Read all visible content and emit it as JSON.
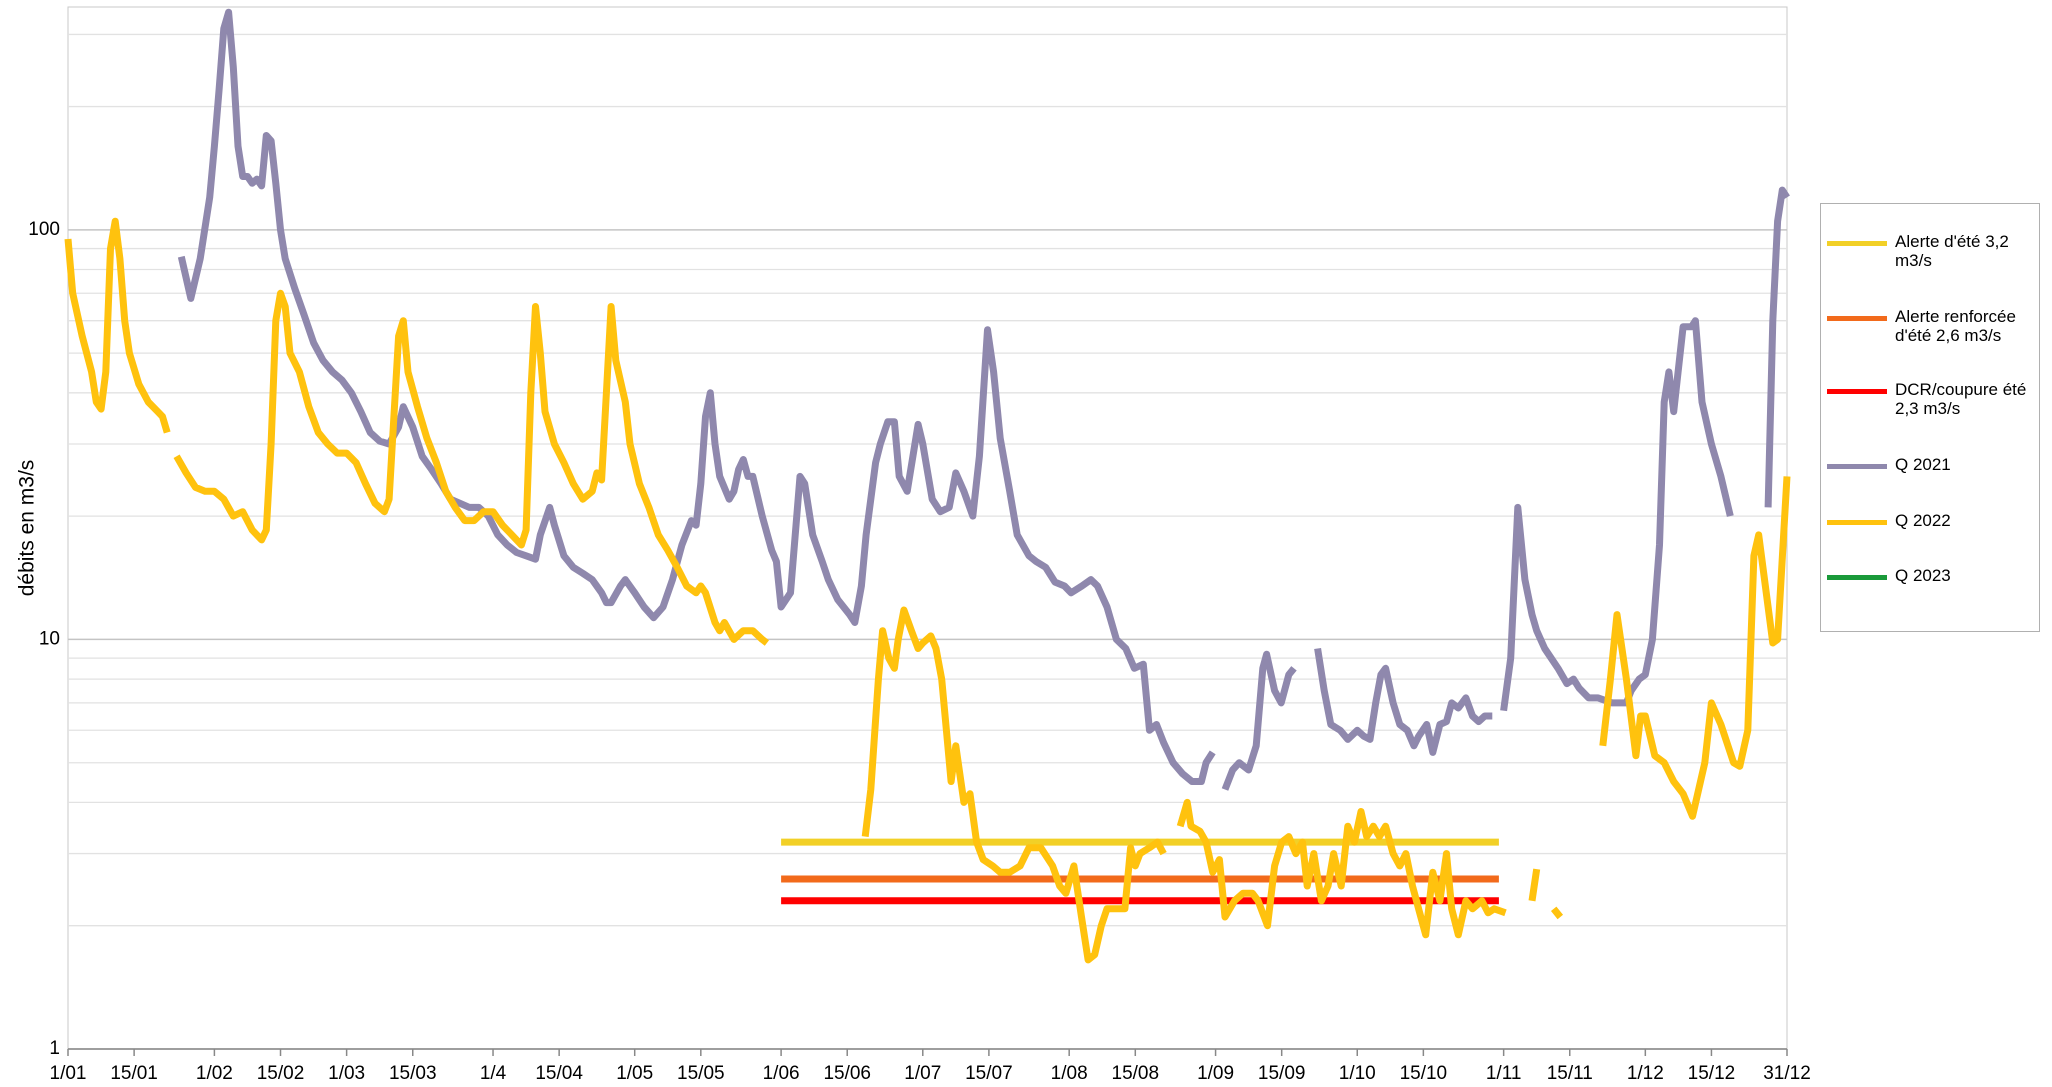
{
  "chart_data": {
    "type": "line",
    "y_label": "débits en m3/s",
    "log_y": true,
    "grid": true,
    "minor_grid": true,
    "legend_position": "right",
    "xlim": [
      0,
      364
    ],
    "ylim": [
      1,
      350
    ],
    "yticks": [
      1,
      10,
      100
    ],
    "xticks": [
      {
        "value": 0,
        "label": "1/01"
      },
      {
        "value": 14,
        "label": "15/01"
      },
      {
        "value": 31,
        "label": "1/02"
      },
      {
        "value": 45,
        "label": "15/02"
      },
      {
        "value": 59,
        "label": "1/03"
      },
      {
        "value": 73,
        "label": "15/03"
      },
      {
        "value": 90,
        "label": "1/4"
      },
      {
        "value": 104,
        "label": "15/04"
      },
      {
        "value": 120,
        "label": "1/05"
      },
      {
        "value": 134,
        "label": "15/05"
      },
      {
        "value": 151,
        "label": "1/06"
      },
      {
        "value": 165,
        "label": "15/06"
      },
      {
        "value": 181,
        "label": "1/07"
      },
      {
        "value": 195,
        "label": "15/07"
      },
      {
        "value": 212,
        "label": "1/08"
      },
      {
        "value": 226,
        "label": "15/08"
      },
      {
        "value": 243,
        "label": "1/09"
      },
      {
        "value": 257,
        "label": "15/09"
      },
      {
        "value": 273,
        "label": "1/10"
      },
      {
        "value": 287,
        "label": "15/10"
      },
      {
        "value": 304,
        "label": "1/11"
      },
      {
        "value": 318,
        "label": "15/11"
      },
      {
        "value": 334,
        "label": "1/12"
      },
      {
        "value": 348,
        "label": "15/12"
      },
      {
        "value": 364,
        "label": "31/12"
      }
    ],
    "series": [
      {
        "name": "Alerte d'été 3,2 m3/s",
        "color": "#f2d027",
        "x": [
          151,
          303
        ],
        "values": [
          3.2,
          3.2
        ]
      },
      {
        "name": "Alerte renforcée d'été 2,6 m3/s",
        "color": "#f26a1b",
        "x": [
          151,
          303
        ],
        "values": [
          2.6,
          2.6
        ]
      },
      {
        "name": "DCR/coupure été 2,3 m3/s",
        "color": "#ff0000",
        "x": [
          151,
          303
        ],
        "values": [
          2.3,
          2.3
        ]
      },
      {
        "name": "Q 2021",
        "color": "#8f88ad",
        "x": [
          24,
          26,
          28,
          30,
          31,
          32,
          33,
          34,
          35,
          36,
          37,
          38,
          39,
          40,
          41,
          42,
          43,
          44,
          45,
          46,
          48,
          50,
          52,
          54,
          56,
          58,
          60,
          62,
          64,
          66,
          68,
          70,
          71,
          73,
          75,
          77,
          79,
          81,
          83,
          85,
          87,
          89,
          91,
          93,
          95,
          97,
          99,
          100,
          102,
          103,
          105,
          107,
          109,
          111,
          113,
          114,
          115,
          117,
          118,
          120,
          122,
          124,
          126,
          128,
          130,
          132,
          133,
          134,
          135,
          136,
          137,
          138,
          140,
          141,
          142,
          143,
          144,
          145,
          147,
          149,
          150,
          151,
          153,
          155,
          156,
          157.7,
          159.7,
          161,
          163,
          165.5,
          166.6,
          168,
          169,
          171,
          172,
          173.6,
          175,
          176,
          177.7,
          180,
          181,
          183,
          184.7,
          186.6,
          188,
          189.7,
          191.6,
          193,
          194.7,
          196,
          197.4,
          199.4,
          201,
          203.5,
          205,
          207,
          209,
          211,
          212.4,
          214.7,
          216.6,
          218,
          220,
          222,
          224,
          225.8,
          227.7,
          229,
          230.5,
          232,
          234,
          236,
          238,
          240,
          241,
          242.4,
          243.5,
          245,
          246.6,
          248,
          250,
          251.6,
          253,
          253.8,
          255.5,
          256.9,
          258.5,
          259.6,
          262,
          264.6,
          266,
          267.4,
          269.4,
          271,
          273,
          274.4,
          275.7,
          276.9,
          278,
          279,
          280.6,
          282,
          283.6,
          285,
          286,
          287.7,
          289,
          290.5,
          291.9,
          293,
          294.4,
          296,
          297.4,
          298.7,
          300,
          301.6,
          302.8,
          304,
          305.5,
          307,
          308.5,
          310,
          311,
          312.7,
          315.5,
          317.4,
          318.8,
          320,
          322,
          324,
          327,
          330,
          331,
          332.7,
          334,
          335.5,
          337,
          338,
          339,
          340,
          342,
          343.8,
          344.6,
          346,
          348,
          350,
          352,
          356,
          360,
          361,
          362,
          363,
          364
        ],
        "values": [
          86,
          68,
          85,
          120,
          160,
          220,
          310,
          340,
          250,
          160,
          135,
          135,
          130,
          133,
          128,
          170,
          165,
          130,
          100,
          85,
          72,
          62,
          53,
          48,
          45,
          43,
          40,
          36,
          32,
          30.5,
          30,
          33,
          37,
          33,
          28,
          26,
          24,
          22,
          21.5,
          21,
          21,
          20,
          18,
          17,
          16.3,
          16,
          15.7,
          18,
          21,
          19,
          16,
          15,
          14.5,
          14,
          13,
          12.3,
          12.3,
          13.5,
          14,
          13,
          12,
          11.3,
          12,
          14,
          17,
          19.5,
          19,
          24,
          35,
          40,
          30,
          25,
          22,
          23,
          26,
          27.5,
          25,
          25,
          20,
          16.5,
          15.5,
          12,
          13,
          25,
          24,
          18,
          15.5,
          14,
          12.5,
          11.5,
          11,
          13.5,
          18,
          27,
          30,
          34,
          34,
          25,
          23,
          33.5,
          30,
          22,
          20.5,
          21,
          25.5,
          23,
          20,
          28,
          57,
          45,
          31,
          23,
          18,
          16,
          15.5,
          15,
          13.8,
          13.5,
          13,
          13.5,
          14,
          13.5,
          12,
          10,
          9.5,
          8.5,
          8.7,
          6,
          6.2,
          5.6,
          5,
          4.7,
          4.5,
          4.5,
          5,
          5.3,
          null,
          4.3,
          4.8,
          5,
          4.8,
          5.5,
          8.5,
          9.2,
          7.5,
          7,
          8.2,
          8.5,
          null,
          9.5,
          7.5,
          6.2,
          6,
          5.7,
          6,
          5.8,
          5.7,
          7,
          8.2,
          8.5,
          7,
          6.2,
          6,
          5.5,
          5.8,
          6.2,
          5.3,
          6.2,
          6.3,
          7,
          6.8,
          7.2,
          6.5,
          6.3,
          6.5,
          6.5,
          null,
          6.7,
          9,
          21,
          14,
          11.5,
          10.5,
          9.5,
          8.5,
          7.8,
          8,
          7.6,
          7.2,
          7.2,
          7,
          7,
          7.5,
          8,
          8.2,
          10,
          17,
          38,
          45,
          36,
          58,
          58,
          60,
          38,
          30,
          25,
          20,
          null,
          21,
          60,
          105,
          125,
          120
        ]
      },
      {
        "name": "Q 2022",
        "color": "#ffc20e",
        "x": [
          0,
          1,
          3,
          5,
          6,
          7,
          8,
          9,
          10,
          11,
          12,
          13,
          15,
          17,
          19,
          20,
          21,
          22,
          23,
          25,
          27,
          29,
          31,
          33,
          35,
          37,
          39,
          41,
          42,
          43,
          44,
          45,
          46,
          47,
          49,
          51,
          53,
          55,
          57,
          59,
          61,
          63,
          65,
          67,
          68,
          69,
          70,
          71,
          72,
          74,
          76,
          78,
          80,
          82,
          84,
          86,
          88,
          90,
          92,
          94,
          96,
          97,
          98,
          99,
          100,
          101,
          103,
          105,
          107,
          109,
          111,
          112,
          113,
          114,
          115,
          116,
          118,
          119,
          121,
          123,
          125,
          127,
          129,
          131,
          133,
          134,
          135,
          137,
          138,
          139,
          141,
          143,
          145,
          147,
          148,
          158,
          168.8,
          170,
          171.6,
          172.5,
          173.8,
          175,
          175.8,
          177,
          178.6,
          180,
          181,
          182.7,
          183.8,
          185,
          186,
          187,
          188,
          189.7,
          191,
          192.4,
          193.8,
          195.8,
          197.4,
          199.4,
          201.6,
          203.5,
          206,
          208.5,
          210,
          211.3,
          213,
          214.6,
          216,
          217.4,
          218.8,
          220,
          222,
          223.8,
          225,
          226,
          227,
          229,
          230.7,
          232,
          234,
          235.5,
          237,
          237.8,
          239.7,
          241,
          242.4,
          243.8,
          245,
          247,
          248.8,
          250.8,
          252,
          254,
          255.5,
          257,
          258.5,
          260,
          261.4,
          262.4,
          263.8,
          265.4,
          266.8,
          268,
          269.6,
          271,
          272.4,
          273.8,
          275,
          276.4,
          277.7,
          279,
          280.6,
          282,
          283.3,
          284.7,
          286,
          287.5,
          289,
          290.5,
          291.9,
          293,
          294.4,
          296,
          297.4,
          299.4,
          300.7,
          302,
          304.4,
          307,
          310,
          311,
          313,
          314.6,
          316,
          320,
          325,
          326.6,
          328,
          330,
          332,
          333,
          334,
          336,
          338,
          340,
          342,
          344,
          346.6,
          348,
          350,
          352.7,
          354,
          355.7,
          357,
          358,
          360,
          361,
          362,
          364
        ],
        "values": [
          95,
          70,
          55,
          45,
          38,
          36.5,
          45,
          90,
          105,
          85,
          60,
          50,
          42,
          38,
          36,
          35,
          32,
          null,
          28,
          25.5,
          23.5,
          23,
          23,
          22,
          20,
          20.5,
          18.5,
          17.5,
          18.5,
          30,
          60,
          70,
          65,
          50,
          45,
          37,
          32,
          30,
          28.5,
          28.5,
          27,
          24,
          21.5,
          20.5,
          22,
          35,
          55,
          60,
          45,
          37,
          31,
          27,
          23,
          21,
          19.5,
          19.5,
          20.5,
          20.5,
          19,
          18,
          17,
          18.5,
          40,
          65,
          50,
          36,
          30,
          27,
          24,
          22,
          23,
          25.5,
          24.5,
          40,
          65,
          48,
          38,
          30,
          24,
          21,
          18,
          16.5,
          15,
          13.5,
          13,
          13.5,
          13,
          11,
          10.5,
          11,
          10,
          10.5,
          10.5,
          10,
          9.8,
          null,
          3.3,
          4.3,
          8,
          10.5,
          9,
          8.5,
          10,
          11.8,
          10.5,
          9.5,
          9.8,
          10.2,
          9.5,
          8,
          6,
          4.5,
          5.5,
          4,
          4.2,
          3.2,
          2.9,
          2.8,
          2.7,
          2.7,
          2.8,
          3.1,
          3.1,
          2.8,
          2.5,
          2.4,
          2.8,
          2.1,
          1.65,
          1.7,
          2,
          2.2,
          2.2,
          2.2,
          3.1,
          2.8,
          3,
          3.1,
          3.2,
          3,
          null,
          3.5,
          4,
          3.5,
          3.4,
          3.2,
          2.7,
          2.9,
          2.1,
          2.3,
          2.4,
          2.4,
          2.3,
          2,
          2.8,
          3.2,
          3.3,
          3,
          3.2,
          2.5,
          3,
          2.3,
          2.5,
          3,
          2.5,
          3.5,
          3.2,
          3.8,
          3.3,
          3.5,
          3.3,
          3.5,
          3,
          2.8,
          3,
          2.5,
          2.2,
          1.9,
          2.7,
          2.3,
          3,
          2.2,
          1.9,
          2.3,
          2.2,
          2.3,
          2.15,
          2.2,
          2.15,
          null,
          2.3,
          2.75,
          null,
          2.2,
          2.1,
          null,
          5.5,
          8,
          11.5,
          8,
          5.2,
          6.5,
          6.5,
          5.2,
          5,
          4.5,
          4.2,
          3.7,
          5,
          7,
          6.2,
          5,
          4.9,
          6,
          16,
          18,
          12,
          9.8,
          10,
          25
        ]
      },
      {
        "name": "Q 2023",
        "color": "#1a9a3a",
        "x": [],
        "values": []
      }
    ]
  }
}
